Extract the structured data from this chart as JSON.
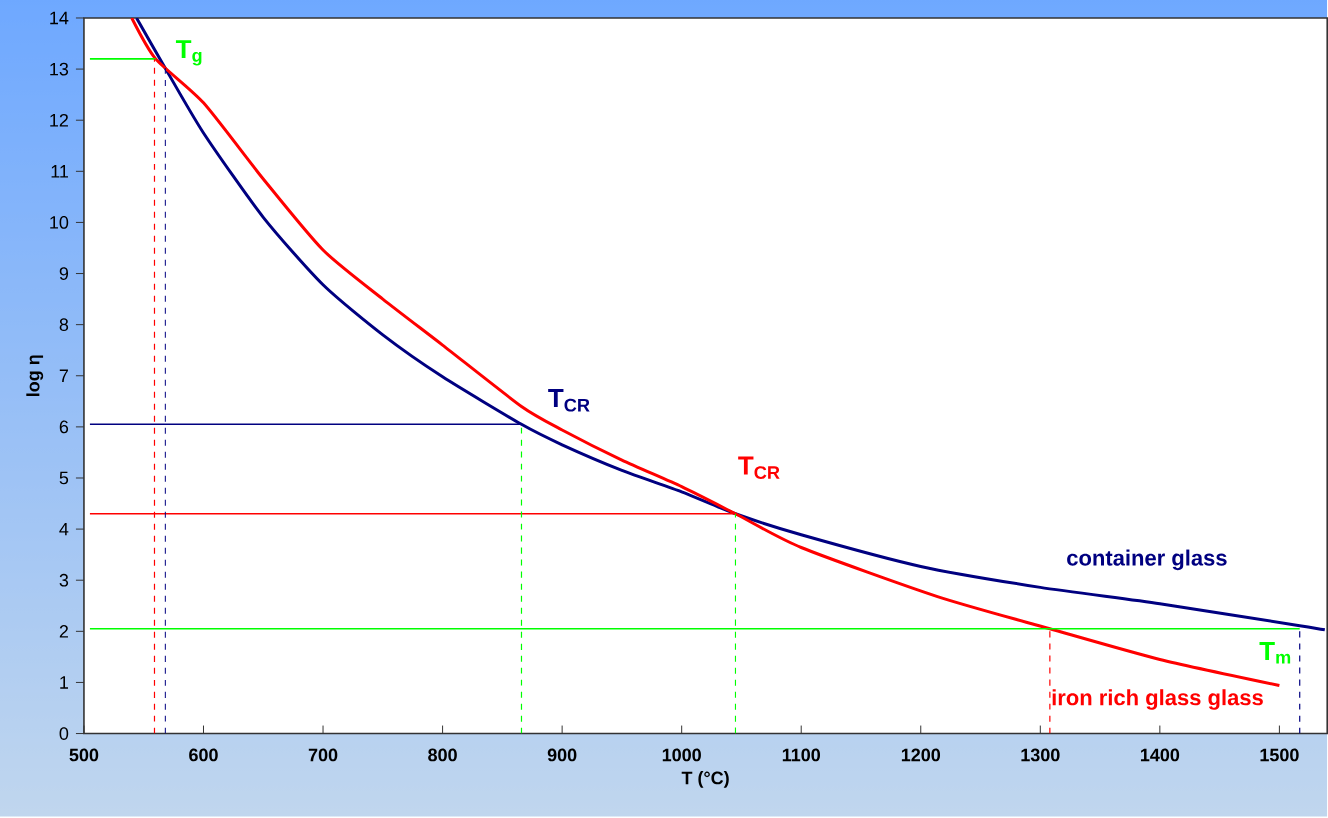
{
  "chart_data": {
    "type": "line",
    "xlabel": "T (°C)",
    "ylabel": "log η",
    "xlim": [
      500,
      1540
    ],
    "ylim": [
      0,
      14
    ],
    "xticks": [
      500,
      600,
      700,
      800,
      900,
      1000,
      1100,
      1200,
      1300,
      1400,
      1500
    ],
    "yticks": [
      0,
      1,
      2,
      3,
      4,
      5,
      6,
      7,
      8,
      9,
      10,
      11,
      12,
      13,
      14
    ],
    "series": [
      {
        "name": "container  glass",
        "color": "#000080",
        "x": [
          544,
          566,
          600,
          650,
          700,
          750,
          800,
          866,
          900,
          950,
          1000,
          1045,
          1100,
          1200,
          1300,
          1400,
          1517,
          1538
        ],
        "values": [
          14,
          13.1,
          11.75,
          10.1,
          8.78,
          7.8,
          6.98,
          6.05,
          5.65,
          5.15,
          4.73,
          4.3,
          3.89,
          3.27,
          2.86,
          2.54,
          2.11,
          2.03
        ]
      },
      {
        "name": "iron rich glass glass",
        "color": "#ff0000",
        "x": [
          540,
          560,
          600,
          650,
          700,
          750,
          800,
          866,
          900,
          950,
          1000,
          1045,
          1100,
          1214,
          1308,
          1400,
          1500
        ],
        "values": [
          14,
          13.2,
          12.34,
          10.85,
          9.46,
          8.5,
          7.6,
          6.4,
          5.94,
          5.35,
          4.83,
          4.3,
          3.64,
          2.68,
          2.05,
          1.45,
          0.94
        ]
      },
      {
        "name": "T$_{g}$",
        "color": "#00ff00",
        "x": [
          505,
          560
        ],
        "values": [
          13.2,
          13.2
        ]
      },
      {
        "name": "T$_{CR}$",
        "color": "#000080",
        "x": [
          505,
          866
        ],
        "values": [
          6.05,
          6.05
        ]
      },
      {
        "name": "T$_{CR}$",
        "color": "#ff0000",
        "x": [
          505,
          1045
        ],
        "values": [
          4.3,
          4.3
        ]
      },
      {
        "name": "T$_{m}$",
        "color": "#00ff00",
        "x": [
          505,
          1517
        ],
        "values": [
          2.05,
          2.05
        ]
      },
      {
        "color": "#ff0000",
        "line_style": "dashed",
        "x": [
          559,
          559
        ],
        "values": [
          0,
          13.2
        ]
      },
      {
        "color": "#000080",
        "line_style": "dashed",
        "x": [
          568,
          568
        ],
        "values": [
          0,
          13.1
        ]
      },
      {
        "color": "#00ff00",
        "line_style": "dashed",
        "x": [
          866,
          866
        ],
        "values": [
          0,
          6.0
        ]
      },
      {
        "color": "#00ff00",
        "line_style": "dashed",
        "x": [
          1045,
          1045
        ],
        "values": [
          0,
          4.3
        ]
      },
      {
        "color": "#ff0000",
        "line_style": "dashed",
        "x": [
          1308,
          1308
        ],
        "values": [
          0,
          2.05
        ]
      },
      {
        "color": "#000080",
        "line_style": "dashed",
        "x": [
          1517,
          1517
        ],
        "values": [
          0,
          2.05
        ]
      }
    ]
  }
}
